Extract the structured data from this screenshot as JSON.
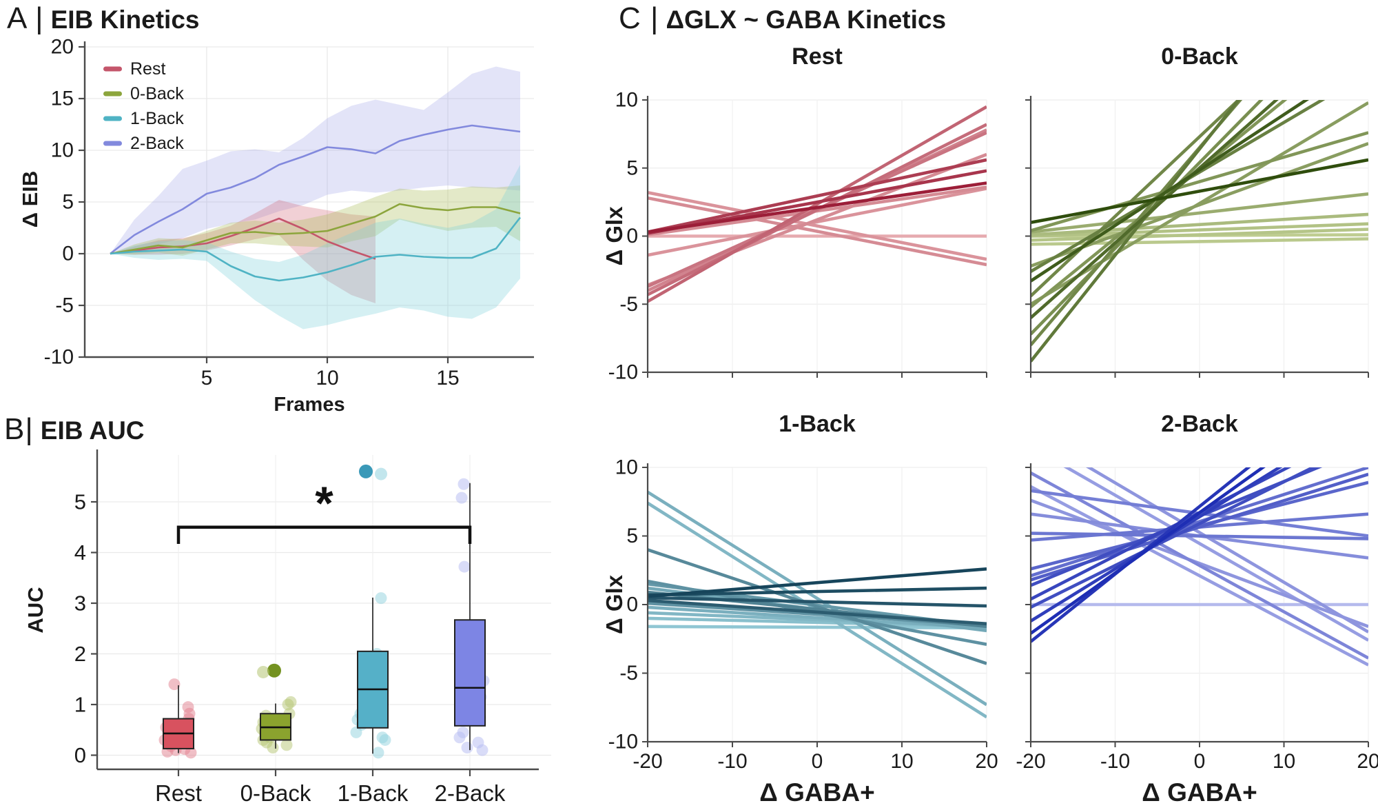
{
  "figure": {
    "panel_a": {
      "prefix": "A |",
      "title": "EIB Kinetics"
    },
    "panel_b": {
      "prefix": "B|",
      "title": "EIB AUC"
    },
    "panel_c": {
      "prefix": "C |",
      "title": "ΔGLX ~ GABA Kinetics"
    }
  },
  "colors": {
    "rest": "#c4566b",
    "back0": "#8ca53c",
    "back1": "#4fb3c4",
    "back2": "#8289dd",
    "axis": "#4a4a4a",
    "grid": "#e9e9e9",
    "text": "#1a1a1a",
    "significance": "#111111"
  },
  "chart_data": [
    {
      "id": "eib-kinetics",
      "panel": "A",
      "type": "line",
      "title": "EIB Kinetics",
      "xlabel": "Frames",
      "ylabel": "Δ EIB",
      "xlim": [
        1,
        18.6
      ],
      "ylim": [
        -10,
        20
      ],
      "xticks": [
        5,
        10,
        15
      ],
      "yticks": [
        20,
        15,
        10,
        5,
        0,
        -5,
        -10
      ],
      "grid": true,
      "legend_position": "top-left",
      "x": [
        1,
        2,
        3,
        4,
        5,
        6,
        7,
        8,
        9,
        10,
        11,
        12,
        13,
        14,
        15,
        16,
        17,
        18
      ],
      "series": [
        {
          "name": "Rest",
          "color": "#c4566b",
          "band": "rgba(207,100,115,0.30)",
          "values": [
            0,
            0.3,
            0.6,
            0.7,
            1.0,
            1.7,
            2.5,
            3.4,
            2.4,
            1.2,
            0.3,
            -0.5
          ],
          "upper": [
            0,
            0.7,
            1.3,
            1.5,
            2.0,
            2.7,
            3.9,
            5.2,
            4.6,
            4.2,
            3.8,
            3.6
          ],
          "lower": [
            0,
            -0.1,
            -0.1,
            0.0,
            0.3,
            0.8,
            1.4,
            1.8,
            -0.6,
            -2.6,
            -4.0,
            -4.8
          ]
        },
        {
          "name": "0-Back",
          "color": "#8ca53c",
          "band": "rgba(168,188,85,0.32)",
          "values": [
            0,
            0.4,
            0.8,
            0.6,
            1.3,
            2.0,
            2.1,
            1.9,
            2.0,
            2.2,
            2.9,
            3.6,
            4.8,
            4.4,
            4.2,
            4.5,
            4.5,
            3.9
          ],
          "upper": [
            0,
            0.9,
            1.5,
            1.4,
            2.2,
            3.0,
            3.2,
            3.0,
            3.3,
            3.8,
            4.6,
            5.5,
            6.3,
            6.1,
            6.2,
            6.5,
            6.4,
            6.6
          ],
          "lower": [
            0,
            -0.1,
            0.1,
            -0.2,
            0.4,
            1.0,
            1.0,
            0.8,
            0.7,
            0.6,
            1.2,
            1.7,
            3.3,
            2.7,
            2.2,
            2.5,
            2.6,
            1.2
          ]
        },
        {
          "name": "1-Back",
          "color": "#4fb3c4",
          "band": "rgba(125,208,218,0.32)",
          "values": [
            0,
            0.2,
            0.3,
            0.4,
            0.2,
            -1.2,
            -2.2,
            -2.6,
            -2.3,
            -1.8,
            -1.1,
            -0.3,
            -0.1,
            -0.3,
            -0.4,
            -0.4,
            0.5,
            3.5
          ],
          "upper": [
            0,
            0.8,
            1.2,
            1.3,
            1.1,
            0.2,
            -0.5,
            -0.8,
            -0.1,
            1.0,
            2.0,
            3.0,
            3.4,
            2.9,
            2.5,
            3.0,
            4.3,
            8.6
          ],
          "lower": [
            0,
            -0.4,
            -0.6,
            -0.5,
            -0.7,
            -2.6,
            -4.5,
            -6.0,
            -7.3,
            -6.9,
            -6.3,
            -5.8,
            -5.2,
            -5.5,
            -6.1,
            -6.3,
            -5.2,
            -2.4
          ]
        },
        {
          "name": "2-Back",
          "color": "#8289dd",
          "band": "rgba(163,166,232,0.30)",
          "values": [
            0,
            1.8,
            3.1,
            4.3,
            5.8,
            6.4,
            7.3,
            8.6,
            9.4,
            10.3,
            10.1,
            9.7,
            10.9,
            11.5,
            12.0,
            12.4,
            12.1,
            11.8
          ],
          "upper": [
            0,
            3.3,
            5.6,
            8.2,
            9.0,
            9.9,
            10.1,
            9.8,
            11.2,
            13.1,
            14.3,
            14.9,
            14.4,
            13.9,
            15.6,
            17.4,
            18.1,
            17.6
          ],
          "lower": [
            0,
            0.3,
            0.9,
            1.5,
            2.4,
            2.9,
            3.3,
            4.1,
            4.7,
            5.7,
            6.1,
            5.9,
            6.1,
            6.4,
            6.6,
            6.4,
            6.3,
            6.1
          ]
        }
      ]
    },
    {
      "id": "eib-auc",
      "panel": "B",
      "type": "box",
      "title": "EIB AUC",
      "xlabel": "",
      "ylabel": "AUC",
      "ylim": [
        0,
        5.9
      ],
      "yticks": [
        0,
        1,
        2,
        3,
        4,
        5
      ],
      "categories": [
        "Rest",
        "0-Back",
        "1-Back",
        "2-Back"
      ],
      "boxes": [
        {
          "category": "Rest",
          "fill": "#d8525f",
          "point_color": "#e2808d",
          "whisker_low": 0.04,
          "q1": 0.13,
          "median": 0.43,
          "q3": 0.72,
          "whisker_high": 1.38,
          "points": [
            [
              1.4,
              -6
            ],
            [
              0.95,
              14
            ],
            [
              0.82,
              16
            ],
            [
              0.72,
              15
            ],
            [
              0.55,
              -18
            ],
            [
              0.45,
              -13
            ],
            [
              0.3,
              -20
            ],
            [
              0.18,
              -11
            ],
            [
              0.12,
              9
            ],
            [
              0.1,
              -4
            ],
            [
              0.07,
              -16
            ],
            [
              0.05,
              18
            ]
          ],
          "outliers": []
        },
        {
          "category": "0-Back",
          "fill": "#8ba32e",
          "point_color": "#b5c573",
          "dark_color": "#6d8c15",
          "whisker_low": 0.13,
          "q1": 0.3,
          "median": 0.55,
          "q3": 0.82,
          "whisker_high": 1.02,
          "points": [
            [
              1.05,
              22
            ],
            [
              1.0,
              18
            ],
            [
              0.82,
              20
            ],
            [
              0.78,
              -14
            ],
            [
              0.65,
              -18
            ],
            [
              0.6,
              -10
            ],
            [
              0.52,
              -20
            ],
            [
              0.45,
              -16
            ],
            [
              0.42,
              14
            ],
            [
              0.35,
              -8
            ],
            [
              0.3,
              -18
            ],
            [
              0.25,
              -13
            ],
            [
              0.2,
              16
            ],
            [
              0.15,
              -4
            ]
          ],
          "outliers": [
            [
              1.67,
              -2,
              true
            ],
            [
              1.64,
              -18,
              false
            ]
          ]
        },
        {
          "category": "1-Back",
          "fill": "#55b0c8",
          "point_color": "#90d2de",
          "dark_color": "#2f93b4",
          "whisker_low": 0.03,
          "q1": 0.54,
          "median": 1.3,
          "q3": 2.05,
          "whisker_high": 3.11,
          "points": [
            [
              3.1,
              12
            ],
            [
              2.0,
              6
            ],
            [
              0.82,
              -18
            ],
            [
              0.76,
              -12
            ],
            [
              0.7,
              -22
            ],
            [
              0.65,
              -8
            ],
            [
              0.6,
              -16
            ],
            [
              0.45,
              -24
            ],
            [
              0.35,
              14
            ],
            [
              0.3,
              18
            ],
            [
              0.05,
              8
            ]
          ],
          "outliers": [
            [
              5.6,
              -10,
              true
            ],
            [
              5.55,
              12,
              false
            ]
          ]
        },
        {
          "category": "2-Back",
          "fill": "#7d85e4",
          "point_color": "#b4b9f1",
          "whisker_low": 0.1,
          "q1": 0.58,
          "median": 1.33,
          "q3": 2.67,
          "whisker_high": 5.37,
          "points": [
            [
              5.35,
              -9
            ],
            [
              5.08,
              -12
            ],
            [
              3.72,
              -8
            ],
            [
              1.7,
              -12
            ],
            [
              1.55,
              14
            ],
            [
              1.47,
              20
            ],
            [
              1.4,
              10
            ],
            [
              1.15,
              16
            ],
            [
              0.75,
              15
            ],
            [
              0.45,
              -10
            ],
            [
              0.35,
              -15
            ],
            [
              0.25,
              12
            ],
            [
              0.15,
              -4
            ],
            [
              0.1,
              18
            ]
          ],
          "outliers": []
        }
      ],
      "significance": {
        "from": "Rest",
        "to": "2-Back",
        "bar_y": 4.5,
        "tick_drop": 0.33,
        "label": "*"
      }
    },
    {
      "id": "glx-gaba-kinetics",
      "panel": "C",
      "type": "spaghetti-grid",
      "title": "ΔGLX ~ GABA Kinetics",
      "xlabel": "Δ GABA+",
      "ylabel": "Δ Glx",
      "xlim": [
        -20,
        20
      ],
      "ylim": [
        -10,
        10
      ],
      "xticks": [
        -20,
        -10,
        0,
        10,
        20
      ],
      "yticks": [
        10,
        5,
        0,
        -5,
        -10
      ],
      "line_format": "[y_at_x_minus20, y_at_x_plus20, shade_0light_to_1dark]",
      "subplots": [
        {
          "title": "Rest",
          "color_light": "#eebabc",
          "color_dark": "#9c1e38",
          "lines": [
            [
              -4.8,
              9.5,
              0.55
            ],
            [
              -4.3,
              8.2,
              0.5
            ],
            [
              -4.0,
              7.8,
              0.35
            ],
            [
              -3.7,
              7.6,
              0.45
            ],
            [
              -3.6,
              6.0,
              0.3
            ],
            [
              0.3,
              5.6,
              0.8
            ],
            [
              0.2,
              4.8,
              0.85
            ],
            [
              0.3,
              3.9,
              1.0
            ],
            [
              -1.4,
              3.5,
              0.25
            ],
            [
              0.1,
              3.6,
              0.3
            ],
            [
              3.2,
              -1.7,
              0.25
            ],
            [
              2.8,
              -2.1,
              0.3
            ],
            [
              0.0,
              0.0,
              0.1
            ]
          ]
        },
        {
          "title": "0-Back",
          "color_light": "#d3dfa3",
          "color_dark": "#2f4d0d",
          "lines": [
            [
              -9.2,
              22,
              0.7
            ],
            [
              -8.0,
              21,
              0.6
            ],
            [
              -7.2,
              18,
              0.55
            ],
            [
              -6.0,
              16,
              0.8
            ],
            [
              -5.2,
              15,
              0.5
            ],
            [
              -4.4,
              19,
              0.6
            ],
            [
              -3.3,
              13,
              0.9
            ],
            [
              -2.6,
              12,
              0.65
            ],
            [
              -5.0,
              9.8,
              0.45
            ],
            [
              -2.2,
              6.8,
              0.45
            ],
            [
              1.0,
              5.6,
              1.0
            ],
            [
              0.4,
              7.6,
              0.5
            ],
            [
              0.3,
              3.1,
              0.35
            ],
            [
              0.1,
              1.6,
              0.25
            ],
            [
              0.0,
              0.9,
              0.2
            ],
            [
              -0.3,
              0.5,
              0.18
            ],
            [
              -0.6,
              -0.2,
              0.15
            ],
            [
              0.0,
              0.1,
              0.12
            ]
          ]
        },
        {
          "title": "1-Back",
          "color_light": "#a5dde8",
          "color_dark": "#17455b",
          "lines": [
            [
              8.2,
              -7.3,
              0.3
            ],
            [
              7.4,
              -8.2,
              0.25
            ],
            [
              4.0,
              -4.3,
              0.55
            ],
            [
              1.7,
              -2.9,
              0.5
            ],
            [
              1.5,
              -1.6,
              0.45
            ],
            [
              1.2,
              -1.9,
              0.35
            ],
            [
              0.9,
              -1.6,
              0.6
            ],
            [
              0.6,
              2.6,
              1.0
            ],
            [
              0.7,
              1.2,
              0.95
            ],
            [
              0.5,
              -0.1,
              0.9
            ],
            [
              0.3,
              -1.4,
              0.85
            ],
            [
              0.1,
              -1.5,
              0.5
            ],
            [
              -0.2,
              -1.7,
              0.3
            ],
            [
              -0.6,
              -1.6,
              0.25
            ],
            [
              -1.0,
              -1.6,
              0.2
            ],
            [
              -1.6,
              -1.7,
              0.15
            ]
          ]
        },
        {
          "title": "2-Back",
          "color_light": "#cacdf5",
          "color_dark": "#1e2eb4",
          "lines": [
            [
              -2.7,
              17,
              0.95
            ],
            [
              -2.1,
              15.5,
              1.0
            ],
            [
              -1.2,
              14,
              0.9
            ],
            [
              0.4,
              13,
              0.85
            ],
            [
              -0.2,
              12,
              0.8
            ],
            [
              1.4,
              11.5,
              0.8
            ],
            [
              1.8,
              9.5,
              0.7
            ],
            [
              2.1,
              10,
              0.6
            ],
            [
              2.6,
              8.9,
              0.65
            ],
            [
              4.7,
              6.6,
              0.55
            ],
            [
              5.2,
              4.8,
              0.55
            ],
            [
              8.3,
              5.0,
              0.5
            ],
            [
              6.6,
              3.4,
              0.4
            ],
            [
              12.5,
              -2.0,
              0.35
            ],
            [
              11.5,
              -2.6,
              0.3
            ],
            [
              9.6,
              -3.9,
              0.45
            ],
            [
              8.6,
              -4.4,
              0.3
            ],
            [
              7.6,
              -1.6,
              0.35
            ],
            [
              0.0,
              0.0,
              0.12
            ]
          ]
        }
      ]
    }
  ]
}
